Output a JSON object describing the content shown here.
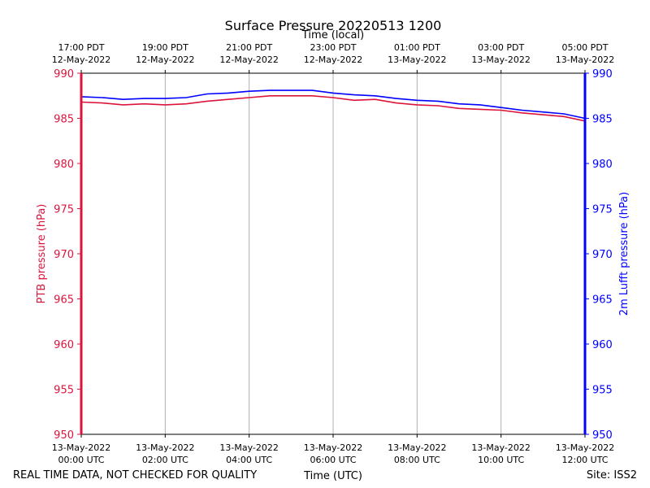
{
  "chart_data": {
    "type": "line",
    "title": "Surface Pressure 20220513 1200",
    "top_xlabel": "Time (local)",
    "xlabel": "Time (UTC)",
    "ylabel_left": "PTB pressure (hPa)",
    "ylabel_right": "2m Lufft pressure (hPa)",
    "xlim_hours": [
      0,
      12
    ],
    "ylim": [
      950,
      990
    ],
    "yticks": [
      950,
      955,
      960,
      965,
      970,
      975,
      980,
      985,
      990
    ],
    "grid": "vertical",
    "bottom_ticks": [
      {
        "line1": "13-May-2022",
        "line2": "00:00 UTC"
      },
      {
        "line1": "13-May-2022",
        "line2": "02:00 UTC"
      },
      {
        "line1": "13-May-2022",
        "line2": "04:00 UTC"
      },
      {
        "line1": "13-May-2022",
        "line2": "06:00 UTC"
      },
      {
        "line1": "13-May-2022",
        "line2": "08:00 UTC"
      },
      {
        "line1": "13-May-2022",
        "line2": "10:00 UTC"
      },
      {
        "line1": "13-May-2022",
        "line2": "12:00 UTC"
      }
    ],
    "top_ticks": [
      {
        "line1": "17:00 PDT",
        "line2": "12-May-2022"
      },
      {
        "line1": "19:00 PDT",
        "line2": "12-May-2022"
      },
      {
        "line1": "21:00 PDT",
        "line2": "12-May-2022"
      },
      {
        "line1": "23:00 PDT",
        "line2": "12-May-2022"
      },
      {
        "line1": "01:00 PDT",
        "line2": "13-May-2022"
      },
      {
        "line1": "03:00 PDT",
        "line2": "13-May-2022"
      },
      {
        "line1": "05:00 PDT",
        "line2": "13-May-2022"
      }
    ],
    "series": [
      {
        "axis": "left",
        "color": "#dc143c",
        "x_hours": [
          0,
          0.5,
          1,
          1.5,
          2,
          2.5,
          3,
          3.5,
          4,
          4.5,
          5,
          5.5,
          6,
          6.5,
          7,
          7.5,
          8,
          8.5,
          9,
          9.5,
          10,
          10.5,
          11,
          11.5,
          12
        ],
        "values": [
          986.8,
          986.7,
          986.5,
          986.6,
          986.5,
          986.6,
          986.9,
          987.1,
          987.3,
          987.5,
          987.5,
          987.5,
          987.3,
          987.0,
          987.1,
          986.7,
          986.5,
          986.4,
          986.1,
          986.0,
          985.9,
          985.6,
          985.4,
          985.2,
          984.7
        ]
      },
      {
        "axis": "right",
        "color": "#0000ff",
        "x_hours": [
          0,
          0.5,
          1,
          1.5,
          2,
          2.5,
          3,
          3.5,
          4,
          4.5,
          5,
          5.5,
          6,
          6.5,
          7,
          7.5,
          8,
          8.5,
          9,
          9.5,
          10,
          10.5,
          11,
          11.5,
          12
        ],
        "values": [
          987.4,
          987.3,
          987.1,
          987.2,
          987.2,
          987.3,
          987.7,
          987.8,
          988.0,
          988.1,
          988.1,
          988.1,
          987.8,
          987.6,
          987.5,
          987.2,
          987.0,
          986.9,
          986.6,
          986.5,
          986.2,
          985.9,
          985.7,
          985.5,
          985.0
        ]
      }
    ]
  },
  "footer": {
    "left_note": "REAL TIME DATA, NOT CHECKED FOR QUALITY",
    "site": "Site: ISS2"
  }
}
